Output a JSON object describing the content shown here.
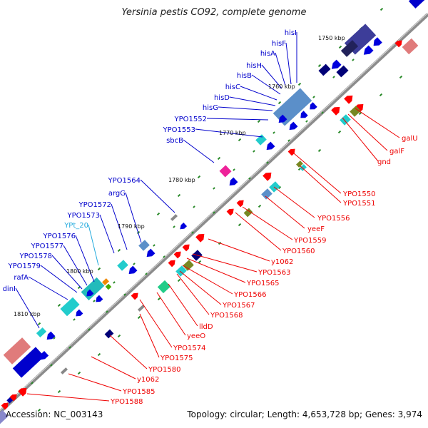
{
  "title": "Yersinia pestis CO92, complete genome",
  "footer": {
    "accession": "Accession: NC_003143",
    "summary": "Topology: circular; Length: 4,653,728 bp; Genes: 3,974"
  },
  "colors": {
    "backbone": "#8a8a8a",
    "plus_label": "#0000cc",
    "minus_label": "#ee0000",
    "rna_label": "#22aadd",
    "tick": "#228822"
  },
  "ticks": [
    "1750 kbp",
    "1760 kbp",
    "1770 kbp",
    "1780 kbp",
    "1790 kbp",
    "1800 kbp",
    "1810 kbp"
  ],
  "plus_labels": [
    "hisI",
    "hisF",
    "hisA",
    "hisH",
    "hisB",
    "hisC",
    "hisD",
    "hisG",
    "YPO1552",
    "YPO1553",
    "sbcB",
    "YPO1564",
    "argG",
    "YPO1572",
    "YPO1573",
    "YPt_20",
    "YPO1576",
    "YPO1577",
    "YPO1578",
    "YPO1579",
    "rafA",
    "dinI"
  ],
  "minus_labels": [
    "galU",
    "galF",
    "gnd",
    "YPO1550",
    "YPO1551",
    "YPO1556",
    "yeeF",
    "YPO1559",
    "YPO1560",
    "y1062",
    "YPO1563",
    "YPO1565",
    "YPO1566",
    "YPO1567",
    "YPO1568",
    "lldD",
    "yeeO",
    "YPO1574",
    "YPO1575",
    "YPO1580",
    "y1062",
    "YPO1585",
    "YPO1588"
  ]
}
